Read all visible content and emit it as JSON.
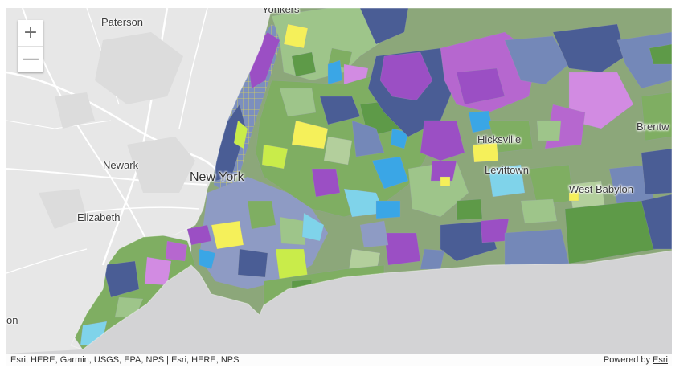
{
  "map": {
    "labels": {
      "yonkers": "Yonkers",
      "paterson": "Paterson",
      "newark": "Newark",
      "new_york": "New York",
      "elizabeth": "Elizabeth",
      "hicksville": "Hicksville",
      "levittown": "Levittown",
      "west_babylon": "West Babylon",
      "brentwood": "Brentw",
      "edge_town": "on"
    },
    "controls": {
      "zoom_in": "+",
      "zoom_out": "—"
    },
    "attribution": {
      "sources": "Esri, HERE, Garmin, USGS, EPA, NPS | Esri, HERE, NPS",
      "powered_by_prefix": "Powered by",
      "powered_by_link": "Esri"
    },
    "colors": {
      "land": "#e7e7e7",
      "water": "#d3d3d5",
      "road": "#ffffff",
      "choropleth": [
        "#4a5d95",
        "#7488b8",
        "#6b8dbd",
        "#8e9bc4",
        "#9b4fc4",
        "#b667cf",
        "#d28be2",
        "#5e9a48",
        "#7fae62",
        "#9ec58a",
        "#b3cf9c",
        "#f5f05a",
        "#c9ec4a",
        "#7fd3ea",
        "#3aa6e6"
      ]
    }
  }
}
